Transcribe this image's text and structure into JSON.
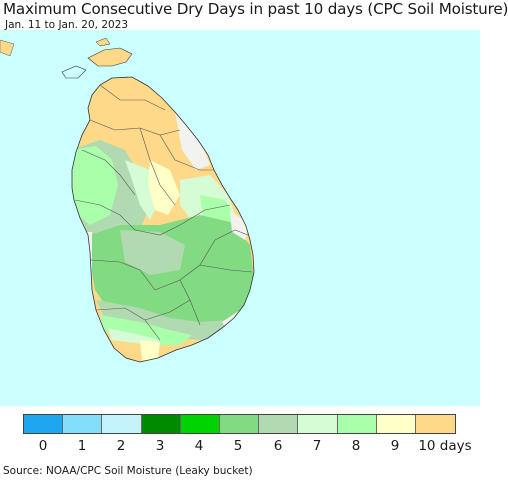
{
  "header": {
    "title": "Maximum Consecutive Dry Days in past 10 days (CPC Soil Moisture)",
    "date_range": "Jan. 11 to Jan. 20, 2023"
  },
  "map": {
    "region": "Sri Lanka",
    "ocean_color": "#ccffff"
  },
  "legend": {
    "colors": [
      "#1ea7f0",
      "#82defb",
      "#c4f3fb",
      "#008a00",
      "#00d400",
      "#82da82",
      "#b1dab1",
      "#d5fcd5",
      "#aaffaa",
      "#ffffc8",
      "#ffd98a"
    ],
    "labels": [
      "0",
      "1",
      "2",
      "3",
      "4",
      "5",
      "6",
      "7",
      "8",
      "9",
      "10 days"
    ]
  },
  "footer": {
    "source": "Source: NOAA/CPC Soil Moisture (Leaky bucket)"
  }
}
